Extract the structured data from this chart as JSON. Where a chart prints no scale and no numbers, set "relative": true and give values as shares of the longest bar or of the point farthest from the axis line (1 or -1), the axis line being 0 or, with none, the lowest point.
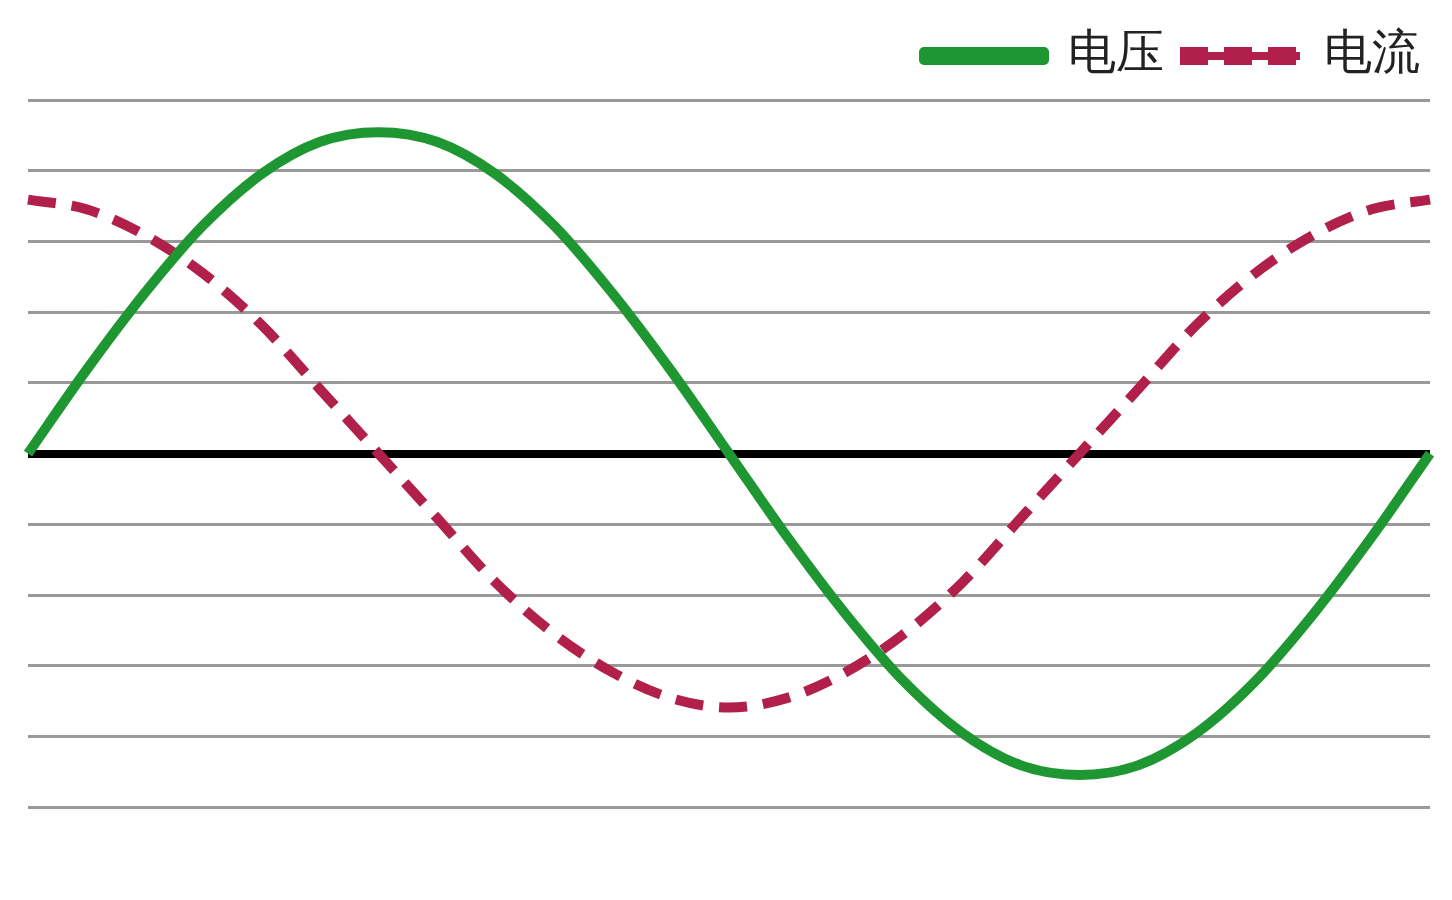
{
  "chart_data": {
    "type": "line",
    "relative": true,
    "grid": "y",
    "legend": "top right",
    "marker": "none",
    "categories": [
      null,
      null,
      null,
      null,
      null,
      null,
      null,
      null,
      null,
      null,
      null,
      null,
      null,
      null,
      null,
      null,
      null,
      null,
      null,
      null,
      null,
      null,
      null,
      null,
      null
    ],
    "series": [
      {
        "name": "电压",
        "color": "#1e9632",
        "line_style": "solid",
        "values": [
          0,
          0.26,
          0.5,
          0.71,
          0.87,
          0.97,
          1,
          0.97,
          0.87,
          0.71,
          0.5,
          0.26,
          0,
          -0.26,
          -0.5,
          -0.71,
          -0.87,
          -0.97,
          -1,
          -0.97,
          -0.87,
          -0.71,
          -0.5,
          -0.26,
          0
        ]
      },
      {
        "name": "电流",
        "color": "#b0204a",
        "line_style": "dashed",
        "values": [
          0.79,
          0.76,
          0.68,
          0.56,
          0.4,
          0.2,
          0,
          -0.2,
          -0.4,
          -0.56,
          -0.68,
          -0.76,
          -0.79,
          -0.76,
          -0.68,
          -0.56,
          -0.4,
          -0.2,
          0,
          0.2,
          0.4,
          0.56,
          0.68,
          0.76,
          0.79
        ]
      }
    ]
  }
}
